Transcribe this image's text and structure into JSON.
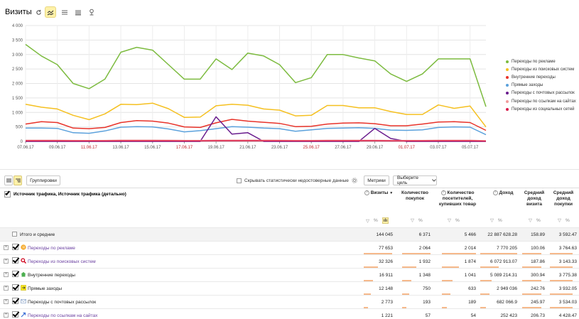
{
  "header": {
    "title": "Визиты",
    "buttons": [
      "refresh-icon",
      "line-chart-icon",
      "area-chart-icon",
      "bar-chart-icon",
      "map-pin-icon"
    ]
  },
  "chart_data": {
    "type": "line",
    "x": [
      "07.06.17",
      "08.06.17",
      "09.06.17",
      "10.06.17",
      "11.06.17",
      "12.06.17",
      "13.06.17",
      "14.06.17",
      "15.06.17",
      "16.06.17",
      "17.06.17",
      "18.06.17",
      "19.06.17",
      "20.06.17",
      "21.06.17",
      "22.06.17",
      "23.06.17",
      "24.06.17",
      "25.06.17",
      "26.06.17",
      "27.06.17",
      "28.06.17",
      "29.06.17",
      "30.06.17",
      "01.07.17",
      "02.07.17",
      "03.07.17",
      "04.07.17",
      "05.07.17",
      "06.07.17"
    ],
    "xticks": [
      "07.06.17",
      "09.06.17",
      "11.06.17",
      "13.06.17",
      "15.06.17",
      "17.06.17",
      "19.06.17",
      "21.06.17",
      "23.06.17",
      "25.06.17",
      "27.06.17",
      "29.06.17",
      "01.07.17",
      "03.07.17",
      "05.07.17"
    ],
    "weekend_ticks": [
      "11.06.17",
      "17.06.17",
      "25.06.17",
      "01.07.17"
    ],
    "yticks": [
      "0",
      "500",
      "1 000",
      "1 500",
      "2 000",
      "2 500",
      "3 000",
      "3 500",
      "4 000"
    ],
    "ylim": [
      0,
      4000
    ],
    "grid": true,
    "legend_position": "right",
    "series": [
      {
        "name": "Переходы по рекламе",
        "color": "#7cbb3f",
        "values": [
          3350,
          2950,
          2650,
          2000,
          1820,
          2150,
          3080,
          3250,
          3150,
          2650,
          2150,
          2150,
          2850,
          2480,
          3050,
          2950,
          2650,
          2030,
          2200,
          3000,
          3000,
          2880,
          2780,
          2330,
          2070,
          2330,
          2850,
          2850,
          2850,
          1200
        ]
      },
      {
        "name": "Переходы из поисковых систем",
        "color": "#f5c020",
        "values": [
          1280,
          1180,
          1120,
          900,
          750,
          950,
          1280,
          1270,
          1320,
          1130,
          830,
          840,
          1230,
          1280,
          1250,
          1120,
          1080,
          880,
          900,
          1240,
          1240,
          1160,
          1160,
          1030,
          930,
          930,
          1260,
          1140,
          1220,
          500
        ]
      },
      {
        "name": "Внутренние переходы",
        "color": "#e8332a",
        "values": [
          600,
          680,
          650,
          460,
          440,
          480,
          650,
          720,
          700,
          630,
          500,
          480,
          640,
          760,
          700,
          660,
          620,
          510,
          520,
          600,
          630,
          640,
          610,
          540,
          540,
          600,
          670,
          680,
          650,
          380
        ]
      },
      {
        "name": "Прямые заходы",
        "color": "#5ba1dc",
        "values": [
          460,
          460,
          450,
          300,
          280,
          360,
          490,
          510,
          500,
          430,
          330,
          370,
          440,
          510,
          490,
          460,
          440,
          350,
          400,
          450,
          460,
          470,
          450,
          390,
          380,
          400,
          480,
          500,
          490,
          230
        ]
      },
      {
        "name": "Переходы с почтовых рассылок",
        "color": "#6a1d8e",
        "values": [
          0,
          0,
          0,
          0,
          0,
          0,
          0,
          0,
          0,
          0,
          0,
          0,
          850,
          250,
          300,
          0,
          0,
          0,
          0,
          0,
          0,
          0,
          450,
          100,
          0,
          0,
          0,
          0,
          0,
          0
        ]
      },
      {
        "name": "Переходы по ссылкам на сайтах",
        "color": "#f29b9b",
        "values": [
          40,
          40,
          40,
          35,
          30,
          35,
          45,
          45,
          45,
          40,
          35,
          35,
          45,
          45,
          45,
          45,
          40,
          35,
          35,
          40,
          40,
          40,
          40,
          35,
          35,
          35,
          40,
          40,
          40,
          25
        ]
      },
      {
        "name": "Переходы из социальных сетей",
        "color": "#d81b4a",
        "values": [
          20,
          20,
          20,
          15,
          15,
          15,
          20,
          20,
          20,
          20,
          15,
          15,
          20,
          20,
          20,
          20,
          20,
          15,
          15,
          20,
          20,
          20,
          20,
          15,
          15,
          15,
          20,
          20,
          20,
          10
        ]
      }
    ]
  },
  "toolbar": {
    "group_label": "Группировки",
    "hide_label": "Скрывать статистически недостоверные данные",
    "metrics_label": "Метрики",
    "goal_label": "Выберите цель"
  },
  "table": {
    "main_header": "Источник трафика, Источник трафика (детально)",
    "columns": [
      "Визиты",
      "Количество покупок",
      "Количество посетителей, купивших товар",
      "Доход",
      "Средний доход визита",
      "Средний доход покупки"
    ],
    "total": {
      "label": "Итого и средние",
      "values": [
        "144 045",
        "6 371",
        "5 466",
        "22 887 628.28",
        "158.89",
        "3 592.47"
      ]
    },
    "rows": [
      {
        "label": "Переходы по рекламе",
        "icon": "ad-icon",
        "values": [
          "77 653",
          "2 064",
          "2 014",
          "7 770 205",
          "100.06",
          "3 764.63"
        ],
        "bar": 0.54
      },
      {
        "label": "Переходы из поисковых систем",
        "icon": "search-icon",
        "values": [
          "32 326",
          "1 932",
          "1 874",
          "6 072 913.07",
          "187.86",
          "3 143.33"
        ],
        "bar": 0.22
      },
      {
        "label": "Внутренние переходы",
        "icon": "home-icon",
        "values": [
          "16 911",
          "1 348",
          "1 041",
          "5 089 214.31",
          "300.94",
          "3 775.38"
        ],
        "bar": 0.12
      },
      {
        "label": "Прямые заходы",
        "icon": "direct-icon",
        "values": [
          "12 148",
          "750",
          "633",
          "2 949 036",
          "242.76",
          "3 932.05"
        ],
        "bar": 0.08
      },
      {
        "label": "Переходы с почтовых рассылок",
        "icon": "mail-icon",
        "values": [
          "2 773",
          "193",
          "189",
          "682 066.9",
          "245.97",
          "3 534.03"
        ],
        "bar": 0.02
      },
      {
        "label": "Переходы по ссылкам на сайтах",
        "icon": "link-icon",
        "values": [
          "1 221",
          "57",
          "54",
          "252 423",
          "206.73",
          "4 428.47"
        ],
        "bar": 0.01
      }
    ]
  }
}
